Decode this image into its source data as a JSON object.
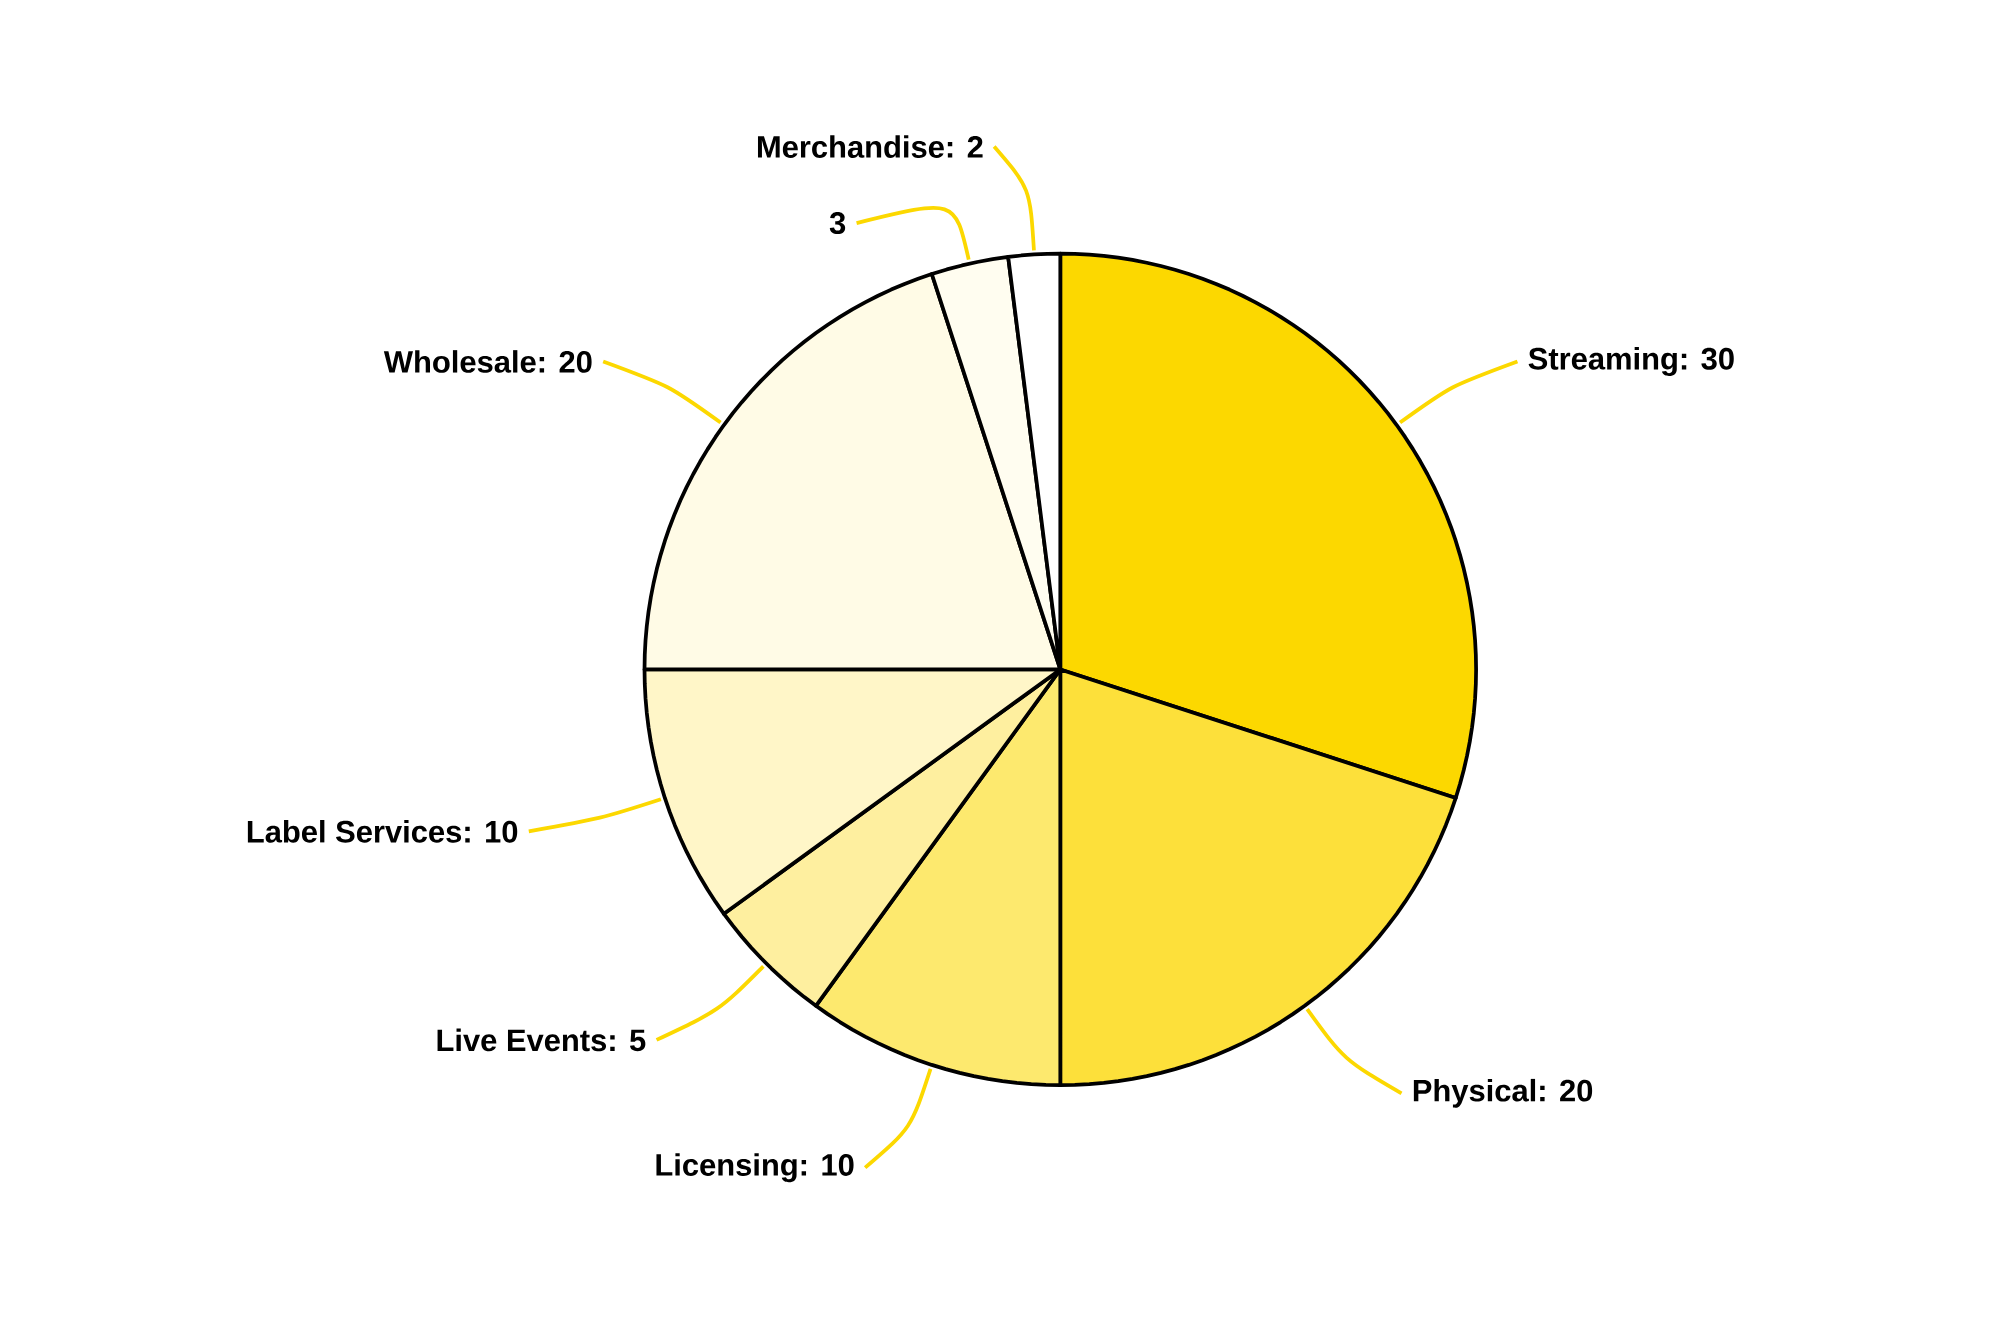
{
  "chart_data": {
    "type": "pie",
    "categories": [
      "Streaming",
      "Physical",
      "Licensing",
      "Live Events",
      "Label Services",
      "Wholesale",
      null,
      "Merchandise"
    ],
    "values": [
      30,
      20,
      10,
      5,
      10,
      20,
      3,
      2
    ],
    "colors": [
      "#fcd800",
      "#fde03a",
      "#fde96e",
      "#feef9f",
      "#fff6c8",
      "#fffbe6",
      "#fffdf0",
      "#ffffff"
    ],
    "value_labels": [
      ": 30",
      ": 20",
      ": 10",
      ": 5",
      ": 10",
      ": 20",
      "3",
      ": 2"
    ]
  }
}
